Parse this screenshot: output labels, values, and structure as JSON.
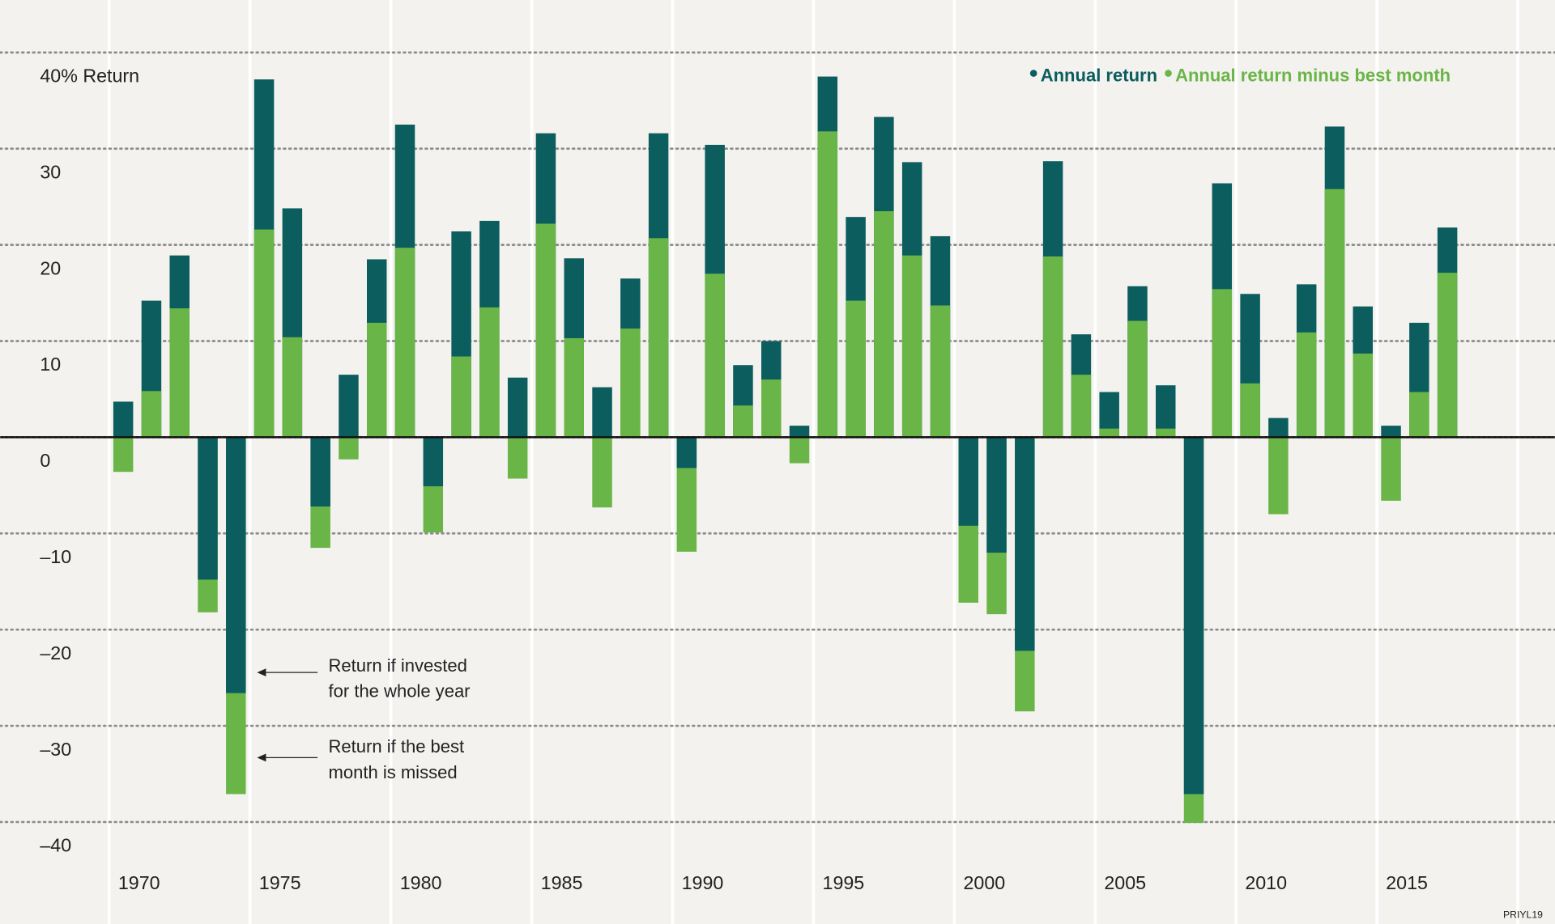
{
  "chart_data": {
    "type": "bar",
    "categories": [
      "1970",
      null,
      null,
      null,
      null,
      "1975",
      null,
      null,
      null,
      null,
      "1980",
      null,
      null,
      null,
      null,
      "1985",
      null,
      null,
      null,
      null,
      "1990",
      null,
      null,
      null,
      null,
      "1995",
      null,
      null,
      null,
      null,
      "2000",
      null,
      null,
      null,
      null,
      "2005",
      null,
      null,
      null,
      null,
      "2010",
      null,
      null,
      null,
      null,
      "2015",
      null,
      null
    ],
    "series": [
      {
        "name": "Annual return",
        "color": "#0b5d5e",
        "values": [
          3.7,
          14.2,
          18.9,
          -14.8,
          -26.6,
          37.2,
          23.8,
          -7.2,
          6.5,
          18.5,
          32.5,
          -5.1,
          21.4,
          22.5,
          6.2,
          31.6,
          18.6,
          5.2,
          16.5,
          31.6,
          -3.2,
          30.4,
          7.5,
          10.0,
          1.2,
          37.5,
          22.9,
          33.3,
          28.6,
          20.9,
          -9.2,
          -12.0,
          -22.2,
          28.7,
          10.7,
          4.7,
          15.7,
          5.4,
          -37.1,
          26.4,
          14.9,
          2.0,
          15.9,
          32.3,
          13.6,
          1.2,
          11.9,
          21.8
        ]
      },
      {
        "name": "Annual return minus best month",
        "color": "#6ab547",
        "values": [
          -3.6,
          4.8,
          13.4,
          -18.2,
          -37.1,
          21.6,
          10.4,
          -11.5,
          -2.3,
          11.9,
          19.7,
          -9.9,
          8.4,
          13.5,
          -4.3,
          22.2,
          10.3,
          -7.3,
          11.3,
          20.7,
          -11.9,
          17.0,
          3.3,
          6.0,
          -2.7,
          31.8,
          14.2,
          23.5,
          18.9,
          13.7,
          -17.2,
          -18.4,
          -28.5,
          18.8,
          6.5,
          0.9,
          12.1,
          0.9,
          -40.1,
          15.4,
          5.6,
          -8.0,
          10.9,
          25.8,
          8.7,
          -6.6,
          4.7,
          17.1
        ]
      }
    ],
    "ylim": [
      -40,
      40
    ],
    "yticks": [
      {
        "value": -40,
        "label": "–40"
      },
      {
        "value": -30,
        "label": "–30"
      },
      {
        "value": -20,
        "label": "–20"
      },
      {
        "value": -10,
        "label": "–10"
      },
      0,
      10,
      20,
      30,
      {
        "value": 40,
        "label": "40% Return"
      }
    ],
    "grid": true,
    "legend": "top-right",
    "annotations": [
      {
        "lines": [
          "Return if invested",
          "for the whole year"
        ]
      },
      {
        "lines": [
          "Return if the best",
          "month is missed"
        ]
      }
    ],
    "source": "PRIYL19"
  }
}
